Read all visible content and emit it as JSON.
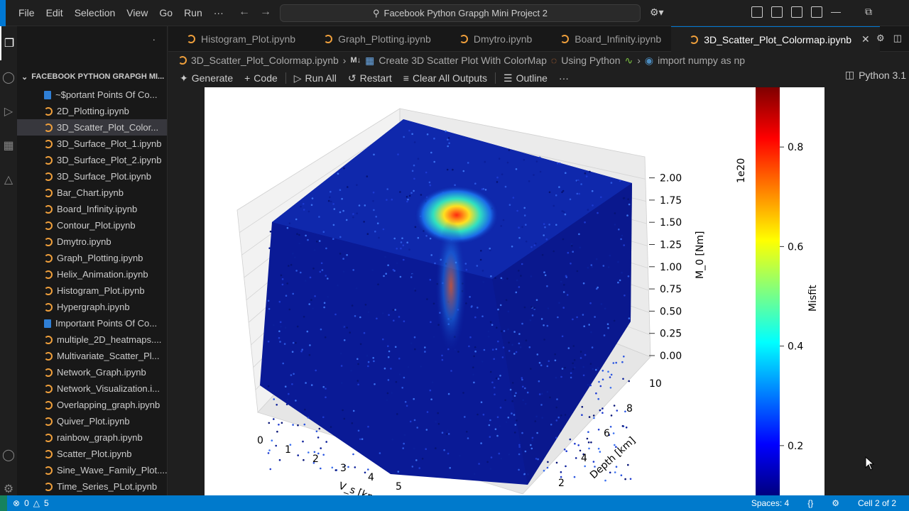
{
  "menu": [
    "File",
    "Edit",
    "Selection",
    "View",
    "Go",
    "Run",
    "···"
  ],
  "search_text": "Facebook Python Grapgh Mini Project 2",
  "explorer": {
    "section_title": "FACEBOOK PYTHON GRAPGH MI...",
    "files": [
      {
        "name": "~$portant Points Of Co...",
        "kind": "doc"
      },
      {
        "name": "2D_Plotting.ipynb",
        "kind": "nb"
      },
      {
        "name": "3D_Scatter_Plot_Color...",
        "kind": "nb",
        "selected": true
      },
      {
        "name": "3D_Surface_Plot_1.ipynb",
        "kind": "nb"
      },
      {
        "name": "3D_Surface_Plot_2.ipynb",
        "kind": "nb"
      },
      {
        "name": "3D_Surface_Plot.ipynb",
        "kind": "nb"
      },
      {
        "name": "Bar_Chart.ipynb",
        "kind": "nb"
      },
      {
        "name": "Board_Infinity.ipynb",
        "kind": "nb"
      },
      {
        "name": "Contour_Plot.ipynb",
        "kind": "nb"
      },
      {
        "name": "Dmytro.ipynb",
        "kind": "nb"
      },
      {
        "name": "Graph_Plotting.ipynb",
        "kind": "nb"
      },
      {
        "name": "Helix_Animation.ipynb",
        "kind": "nb"
      },
      {
        "name": "Histogram_Plot.ipynb",
        "kind": "nb"
      },
      {
        "name": "Hypergraph.ipynb",
        "kind": "nb"
      },
      {
        "name": "Important Points Of Co...",
        "kind": "doc"
      },
      {
        "name": "multiple_2D_heatmaps....",
        "kind": "nb"
      },
      {
        "name": "Multivariate_Scatter_Pl...",
        "kind": "nb"
      },
      {
        "name": "Network_Graph.ipynb",
        "kind": "nb"
      },
      {
        "name": "Network_Visualization.i...",
        "kind": "nb"
      },
      {
        "name": "Overlapping_graph.ipynb",
        "kind": "nb"
      },
      {
        "name": "Quiver_Plot.ipynb",
        "kind": "nb"
      },
      {
        "name": "rainbow_graph.ipynb",
        "kind": "nb"
      },
      {
        "name": "Scatter_Plot.ipynb",
        "kind": "nb"
      },
      {
        "name": "Sine_Wave_Family_Plot....",
        "kind": "nb"
      },
      {
        "name": "Time_Series_PLot.ipynb",
        "kind": "nb"
      }
    ]
  },
  "tabs": [
    {
      "label": "Histogram_Plot.ipynb",
      "active": false
    },
    {
      "label": "Graph_Plotting.ipynb",
      "active": false
    },
    {
      "label": "Dmytro.ipynb",
      "active": false
    },
    {
      "label": "Board_Infinity.ipynb",
      "active": false
    },
    {
      "label": "3D_Scatter_Plot_Colormap.ipynb",
      "active": true
    }
  ],
  "breadcrumb": {
    "file": "3D_Scatter_Plot_Colormap.ipynb",
    "md_marker": "M↓",
    "heading": "Create 3D Scatter Plot With ColorMap",
    "heading_tail": "Using Python",
    "cell": "import numpy as np"
  },
  "toolbar": {
    "generate": "Generate",
    "code": "Code",
    "run_all": "Run All",
    "restart": "Restart",
    "clear": "Clear All Outputs",
    "outline": "Outline",
    "more": "···",
    "kernel": "Python 3.1"
  },
  "chart_data": {
    "type": "scatter",
    "projection": "3d",
    "colormap": "jet",
    "xlabel": "V_s [km/s]",
    "ylabel": "Depth [km]",
    "zlabel": "M_0 [Nm]",
    "z_offset_text": "1e20",
    "x_ticks": [
      0,
      1,
      2,
      3,
      4,
      5
    ],
    "y_ticks": [
      2,
      4,
      6,
      8,
      10
    ],
    "z_ticks": [
      "0.00",
      "0.25",
      "0.50",
      "0.75",
      "1.00",
      "1.25",
      "1.50",
      "1.75",
      "2.00"
    ],
    "colorbar_label": "Misfit",
    "colorbar_ticks": [
      "0.2",
      "0.4",
      "0.6",
      "0.8"
    ],
    "colorbar_range": [
      0.1,
      0.92
    ]
  },
  "status": {
    "errors": "0",
    "warnings": "5",
    "spaces": "Spaces: 4",
    "braces": "{}",
    "cell": "Cell 2 of 2"
  }
}
